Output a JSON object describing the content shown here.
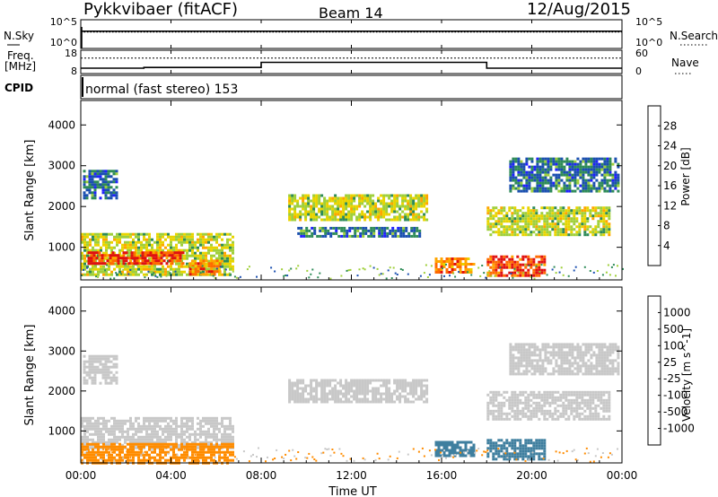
{
  "header": {
    "station": "Pykkvibaer (fitACF)",
    "beam": "Beam 14",
    "date": "12/Aug/2015"
  },
  "noise_panel": {
    "left_label": "N.Sky",
    "left_ticks": [
      "10^5",
      "10^0"
    ],
    "right_ticks": [
      "10^5",
      "10^0"
    ],
    "right_label": "N.Search"
  },
  "freq_panel": {
    "left_label_top": "Freq.",
    "left_label_unit": "[MHz]",
    "left_ticks": [
      "18",
      "8"
    ],
    "right_ticks": [
      "60",
      "0"
    ],
    "right_label": "Nave"
  },
  "cpid": {
    "label": "CPID",
    "program": "normal (fast stereo) 153"
  },
  "x_axis": {
    "tick_labels": [
      "00:00",
      "04:00",
      "08:00",
      "12:00",
      "16:00",
      "20:00",
      "00:00"
    ],
    "title": "Time UT"
  },
  "power_colorbar": {
    "title": "Power [dB]",
    "levels": [
      "28",
      "24",
      "20",
      "16",
      "12",
      "8",
      "4"
    ],
    "colors": [
      "#e01010",
      "#ff6a00",
      "#ffa500",
      "#e8d400",
      "#9fcf3a",
      "#2e8b57",
      "#1b4fb0",
      "#2020ff"
    ]
  },
  "velocity_colorbar": {
    "title": "Velocity [m s^-1]",
    "levels": [
      "1000",
      "500",
      "100",
      "25",
      "-25",
      "-100",
      "-500",
      "-1000"
    ],
    "colors": [
      "#1d3fa8",
      "#3f7f9f",
      "#2e8b57",
      "#66cc33",
      "#c8c8c8",
      "#ffb347",
      "#ff8c00",
      "#ff4500",
      "#ee0000"
    ]
  },
  "chart_data": [
    {
      "type": "line",
      "panel": "noise",
      "series": [
        {
          "name": "N.Sky",
          "x": [
            0,
            4,
            8,
            12,
            16,
            20,
            24
          ],
          "values": [
            1000,
            1000,
            1000,
            1000,
            1000,
            1000,
            1000
          ]
        },
        {
          "name": "N.Search",
          "x": [
            0,
            4,
            8,
            12,
            16,
            20,
            24
          ],
          "values": [
            1000,
            1000,
            1000,
            1000,
            1000,
            1000,
            1000
          ]
        }
      ],
      "ylim": [
        1,
        100000
      ],
      "y_scale": "log"
    },
    {
      "type": "line",
      "panel": "frequency",
      "series": [
        {
          "name": "Freq.",
          "x": [
            0,
            2.8,
            2.8,
            8,
            8,
            18,
            18,
            24
          ],
          "values": [
            10.3,
            10.3,
            10.6,
            10.6,
            12.8,
            12.8,
            10.3,
            10.3
          ]
        },
        {
          "name": "Nave",
          "x": [
            0,
            24
          ],
          "values": [
            40,
            40
          ]
        }
      ],
      "ylim": [
        8,
        18
      ],
      "y2lim": [
        0,
        60
      ]
    },
    {
      "type": "heatmap",
      "panel": "power",
      "x_range_hours": [
        0,
        24
      ],
      "ylabel": "Slant Range [km]",
      "y_ticks": [
        1000,
        2000,
        3000,
        4000
      ],
      "ylim": [
        200,
        4600
      ],
      "colorbar": "Power [dB]",
      "regions": [
        {
          "t0": 0.1,
          "t1": 1.6,
          "r0": 2200,
          "r1": 2900,
          "level": 8
        },
        {
          "t0": 0.0,
          "t1": 6.8,
          "r0": 300,
          "r1": 1350,
          "level": 16
        },
        {
          "t0": 0.3,
          "t1": 4.5,
          "r0": 600,
          "r1": 900,
          "level": 28
        },
        {
          "t0": 4.8,
          "t1": 6.2,
          "r0": 350,
          "r1": 700,
          "level": 24
        },
        {
          "t0": 9.2,
          "t1": 15.3,
          "r0": 1700,
          "r1": 2300,
          "level": 16
        },
        {
          "t0": 9.6,
          "t1": 15.0,
          "r0": 1300,
          "r1": 1500,
          "level": 8
        },
        {
          "t0": 15.7,
          "t1": 17.4,
          "r0": 400,
          "r1": 750,
          "level": 24
        },
        {
          "t0": 18.0,
          "t1": 20.6,
          "r0": 300,
          "r1": 800,
          "level": 28
        },
        {
          "t0": 18.0,
          "t1": 23.4,
          "r0": 1300,
          "r1": 2000,
          "level": 16
        },
        {
          "t0": 19.0,
          "t1": 23.8,
          "r0": 2400,
          "r1": 3200,
          "level": 8
        }
      ]
    },
    {
      "type": "heatmap",
      "panel": "velocity",
      "x_range_hours": [
        0,
        24
      ],
      "ylabel": "Slant Range [km]",
      "y_ticks": [
        1000,
        2000,
        3000,
        4000
      ],
      "ylim": [
        200,
        4600
      ],
      "colorbar": "Velocity [m s^-1]",
      "regions": [
        {
          "t0": 0.1,
          "t1": 1.6,
          "r0": 2200,
          "r1": 2900,
          "level": 0
        },
        {
          "t0": 0.0,
          "t1": 6.8,
          "r0": 600,
          "r1": 1350,
          "level": 0
        },
        {
          "t0": 0.0,
          "t1": 6.8,
          "r0": 200,
          "r1": 700,
          "level": -500
        },
        {
          "t0": 9.2,
          "t1": 15.3,
          "r0": 1700,
          "r1": 2300,
          "level": 0
        },
        {
          "t0": 15.7,
          "t1": 17.4,
          "r0": 400,
          "r1": 750,
          "level": 500
        },
        {
          "t0": 18.0,
          "t1": 20.6,
          "r0": 300,
          "r1": 800,
          "level": 500
        },
        {
          "t0": 18.0,
          "t1": 23.4,
          "r0": 1300,
          "r1": 2000,
          "level": 0
        },
        {
          "t0": 19.0,
          "t1": 23.8,
          "r0": 2400,
          "r1": 3200,
          "level": 0
        }
      ]
    }
  ]
}
